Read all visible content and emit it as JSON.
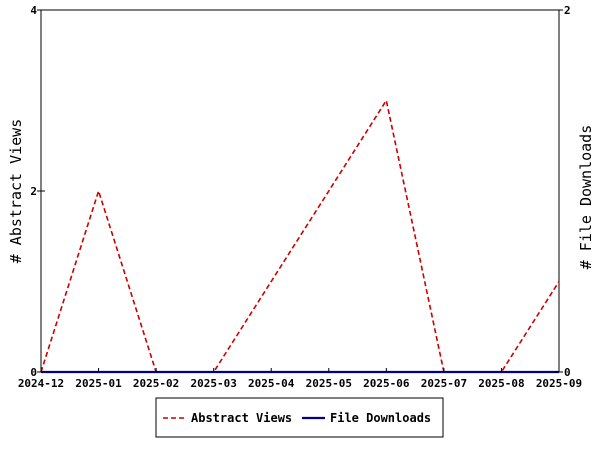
{
  "chart_data": {
    "type": "line",
    "x": [
      "2024-12",
      "2025-01",
      "2025-02",
      "2025-03",
      "2025-04",
      "2025-05",
      "2025-06",
      "2025-07",
      "2025-08",
      "2025-09"
    ],
    "x_tick_labels": [
      "2024-12",
      "2025-01",
      "2025-02",
      "2025-03",
      "2025-04",
      "2025-05",
      "2025-06",
      "2025-07",
      "2025-08",
      "2025-09"
    ],
    "series": [
      {
        "name": "Abstract Views",
        "axis": "left",
        "color": "#cc0000",
        "style": "dashed",
        "values": [
          0,
          2,
          0,
          0,
          1,
          2,
          3,
          0,
          0,
          1
        ]
      },
      {
        "name": "File Downloads",
        "axis": "right",
        "color": "#00008b",
        "style": "solid",
        "values": [
          0,
          0,
          0,
          0,
          0,
          0,
          0,
          0,
          0,
          0
        ]
      }
    ],
    "ylabel_left": "# Abstract Views",
    "ylabel_right": "# File Downloads",
    "ylim_left": [
      0,
      4
    ],
    "ylim_right": [
      0,
      2
    ],
    "yticks_left": [
      "0",
      "2",
      "4"
    ],
    "yticks_right": [
      "0",
      "2"
    ],
    "legend_position": "bottom-center",
    "grid": false
  }
}
